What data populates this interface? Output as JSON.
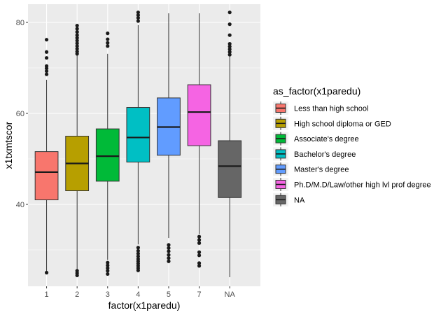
{
  "chart_data": {
    "type": "boxplot",
    "title": "",
    "xlabel": "factor(x1paredu)",
    "ylabel": "x1txmtscor",
    "categories": [
      "1",
      "2",
      "3",
      "4",
      "5",
      "7",
      "NA"
    ],
    "ylim": [
      22,
      84
    ],
    "yticks": [
      40,
      60,
      80
    ],
    "grid": true,
    "legend": {
      "title": "as_factor(x1paredu)",
      "placement": "right",
      "entries": [
        {
          "label": "Less than high school",
          "color": "#F8766D"
        },
        {
          "label": "High school diploma or GED",
          "color": "#B79F00"
        },
        {
          "label": "Associate's degree",
          "color": "#00BA38"
        },
        {
          "label": "Bachelor's degree",
          "color": "#00BFC4"
        },
        {
          "label": "Master's degree",
          "color": "#619CFF"
        },
        {
          "label": "Ph.D/M.D/Law/other high lvl prof degree",
          "color": "#F564E3"
        },
        {
          "label": "NA",
          "color": "#666666"
        }
      ]
    },
    "boxes": [
      {
        "category": "1",
        "min": 25.0,
        "q1": 41.0,
        "median": 47.1,
        "q3": 51.6,
        "max": 67.4,
        "outliers": [
          25.0,
          68.6,
          69.3,
          69.9,
          70.4,
          72.2,
          73.5,
          76.2
        ]
      },
      {
        "category": "2",
        "min": 25.6,
        "q1": 43.0,
        "median": 49.0,
        "q3": 55.0,
        "max": 72.8,
        "outliers": [
          24.4,
          24.9,
          25.4,
          73.1,
          73.6,
          74.2,
          74.8,
          75.4,
          76.0,
          76.6,
          77.2,
          77.9,
          78.6,
          79.3
        ]
      },
      {
        "category": "3",
        "min": 27.8,
        "q1": 45.1,
        "median": 50.6,
        "q3": 56.6,
        "max": 73.1,
        "outliers": [
          24.7,
          25.4,
          26.0,
          26.6,
          27.2,
          74.8,
          75.5,
          76.3,
          77.6
        ]
      },
      {
        "category": "4",
        "min": 31.2,
        "q1": 49.3,
        "median": 54.7,
        "q3": 61.3,
        "max": 79.4,
        "outliers": [
          25.5,
          26.0,
          26.5,
          27.0,
          27.5,
          28.0,
          28.6,
          29.2,
          29.8,
          30.5,
          80.3,
          81.0,
          81.6,
          82.2
        ]
      },
      {
        "category": "5",
        "min": 32.6,
        "q1": 50.8,
        "median": 57.0,
        "q3": 63.4,
        "max": 82.0,
        "outliers": [
          27.5,
          28.2,
          28.9,
          29.7,
          30.4,
          31.1
        ]
      },
      {
        "category": "7",
        "min": 33.5,
        "q1": 52.9,
        "median": 60.3,
        "q3": 66.3,
        "max": 82.0,
        "outliers": [
          26.5,
          27.1,
          28.8,
          29.5,
          31.5,
          32.2,
          32.9
        ]
      },
      {
        "category": "NA",
        "min": 24.0,
        "q1": 41.5,
        "median": 48.4,
        "q3": 54.0,
        "max": 72.5,
        "outliers": [
          72.9,
          73.5,
          74.1,
          74.7,
          75.3,
          77.2,
          79.6,
          82.2
        ]
      }
    ]
  }
}
